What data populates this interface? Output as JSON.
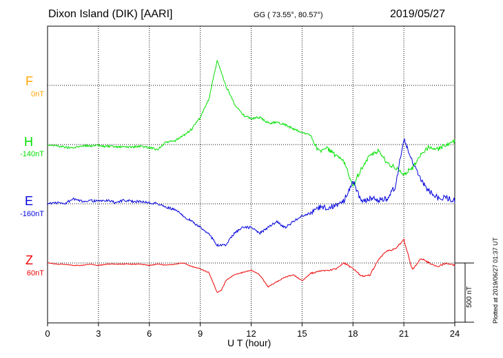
{
  "header": {
    "station": "Dixon Island (DIK)  [AARI]",
    "coords": "GG ( 73.55°,  80.57°)",
    "date": "2019/05/27"
  },
  "footer": {
    "plotted": "Plotted at 2019/06/27 01:37 UT",
    "scale_label": "500 nT"
  },
  "chart_data": {
    "type": "line",
    "xlabel": "U T (hour)",
    "xlim": [
      0,
      24
    ],
    "xticks": [
      "0",
      "3",
      "6",
      "9",
      "12",
      "15",
      "18",
      "21",
      "24"
    ],
    "grid": true,
    "scale_bar_nT": 500,
    "series": [
      {
        "name": "F",
        "offset_label": "0nT",
        "color": "#ffa500",
        "x": [],
        "y": []
      },
      {
        "name": "H",
        "offset_label": "-140nT",
        "color": "#00e000",
        "x": [
          0,
          0.5,
          1,
          1.5,
          2,
          2.5,
          3,
          3.5,
          4,
          4.5,
          5,
          5.5,
          6,
          6.5,
          7,
          7.5,
          8,
          8.5,
          9,
          9.5,
          10,
          10.5,
          11,
          11.5,
          12,
          12.5,
          13,
          13.5,
          14,
          14.5,
          15,
          15.5,
          16,
          16.5,
          17,
          17.5,
          18,
          18.5,
          19,
          19.5,
          20,
          20.5,
          21,
          21.5,
          22,
          22.5,
          23,
          23.5,
          24
        ],
        "y": [
          0,
          -2,
          -4,
          -6,
          -2,
          -2,
          -2,
          -3,
          -4,
          -4,
          -4,
          -3,
          -5,
          -8,
          4,
          6,
          15,
          26,
          46,
          76,
          142,
          100,
          70,
          50,
          44,
          46,
          36,
          38,
          34,
          26,
          20,
          16,
          -12,
          -6,
          -20,
          -30,
          -70,
          -40,
          -20,
          -10,
          -30,
          -40,
          -50,
          -40,
          -16,
          -4,
          -8,
          0,
          6
        ],
        "unit": "nT (relative to baseline)"
      },
      {
        "name": "E",
        "offset_label": "-160nT",
        "color": "#0000dd",
        "x": [
          0,
          0.5,
          1,
          1.5,
          2,
          2.5,
          3,
          3.5,
          4,
          4.5,
          5,
          5.5,
          6,
          6.5,
          7,
          7.5,
          8,
          8.5,
          9,
          9.5,
          10,
          10.5,
          11,
          11.5,
          12,
          12.5,
          13,
          13.5,
          14,
          14.5,
          15,
          15.5,
          16,
          16.5,
          17,
          17.5,
          18,
          18.5,
          19,
          19.5,
          20,
          20.5,
          21,
          21.5,
          22,
          22.5,
          23,
          23.5,
          24
        ],
        "y": [
          0,
          2,
          0,
          8,
          4,
          6,
          4,
          6,
          2,
          6,
          4,
          4,
          2,
          0,
          -6,
          -10,
          -20,
          -30,
          -40,
          -50,
          -70,
          -70,
          -50,
          -40,
          -40,
          -50,
          -40,
          -30,
          -40,
          -30,
          -20,
          -16,
          -6,
          -6,
          -4,
          6,
          40,
          2,
          10,
          6,
          8,
          30,
          110,
          70,
          40,
          20,
          10,
          10,
          6
        ],
        "unit": "nT (relative to baseline)"
      },
      {
        "name": "Z",
        "offset_label": "60nT",
        "color": "#ee0000",
        "x": [
          0,
          0.5,
          1,
          1.5,
          2,
          2.5,
          3,
          3.5,
          4,
          4.5,
          5,
          5.5,
          6,
          6.5,
          7,
          7.5,
          8,
          8.5,
          9,
          9.5,
          10,
          10.25,
          10.5,
          11,
          11.5,
          12,
          12.5,
          13,
          13.5,
          14,
          14.5,
          15,
          15.5,
          16,
          16.5,
          17,
          17.5,
          18,
          18.5,
          19,
          19.5,
          20,
          20.5,
          21,
          21.5,
          22,
          22.5,
          23,
          23.5,
          24
        ],
        "y": [
          0,
          -2,
          -2,
          -4,
          -4,
          -2,
          -4,
          -2,
          -2,
          -2,
          -2,
          -2,
          -4,
          -2,
          -4,
          -2,
          0,
          -6,
          -10,
          -16,
          -50,
          -46,
          -30,
          -20,
          -16,
          -12,
          -20,
          -40,
          -32,
          -24,
          -20,
          -30,
          -18,
          -14,
          -12,
          -10,
          0,
          -10,
          -22,
          -20,
          6,
          20,
          24,
          40,
          -12,
          8,
          0,
          -6,
          0,
          -4
        ],
        "unit": "nT (relative to baseline)"
      }
    ]
  }
}
